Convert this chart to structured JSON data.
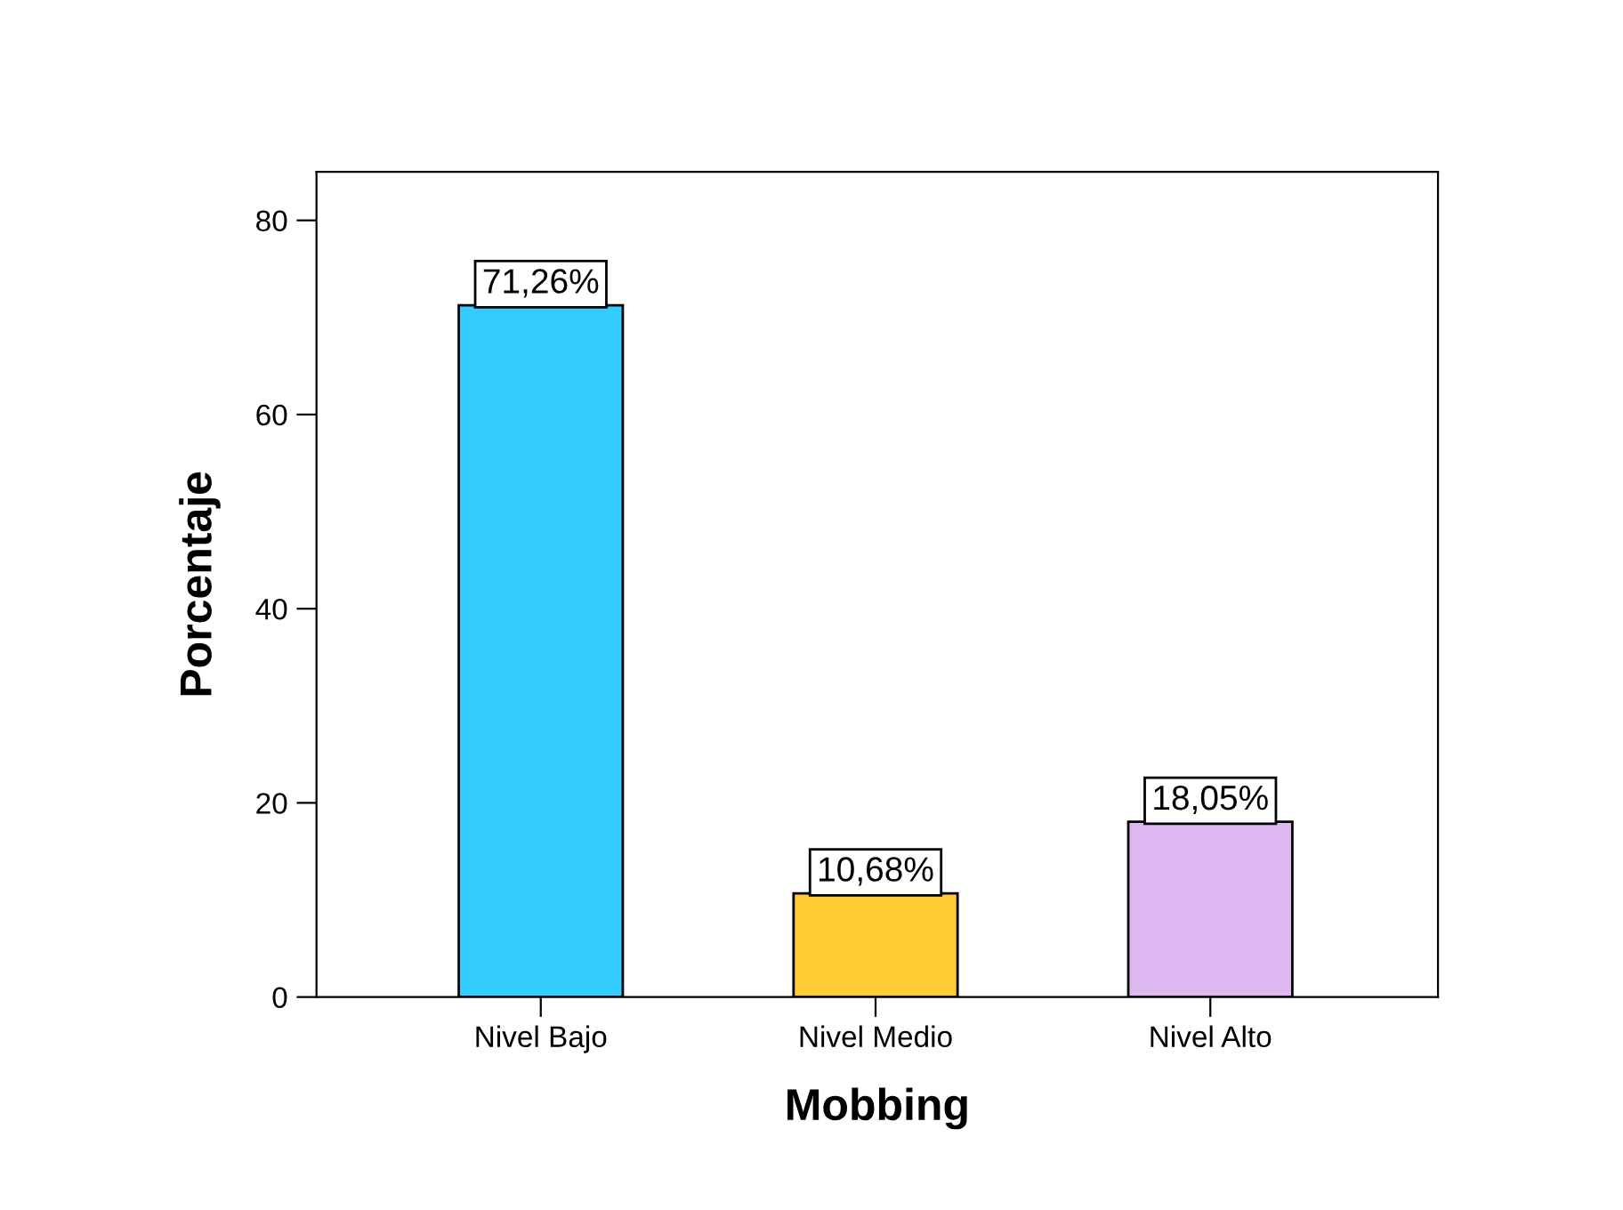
{
  "chart_data": {
    "type": "bar",
    "xlabel": "Mobbing",
    "ylabel": "Porcentaje",
    "categories": [
      "Nivel Bajo",
      "Nivel Medio",
      "Nivel Alto"
    ],
    "values": [
      71.26,
      10.68,
      18.05
    ],
    "colors": [
      "#33ccff",
      "#ffcc33",
      "#ddb8f0"
    ],
    "value_labels": [
      "71,26%",
      "10,68%",
      "18,05%"
    ],
    "ylim": [
      0,
      85
    ],
    "yticks": [
      0,
      20,
      40,
      60,
      80
    ],
    "grid": false,
    "legend": false
  }
}
